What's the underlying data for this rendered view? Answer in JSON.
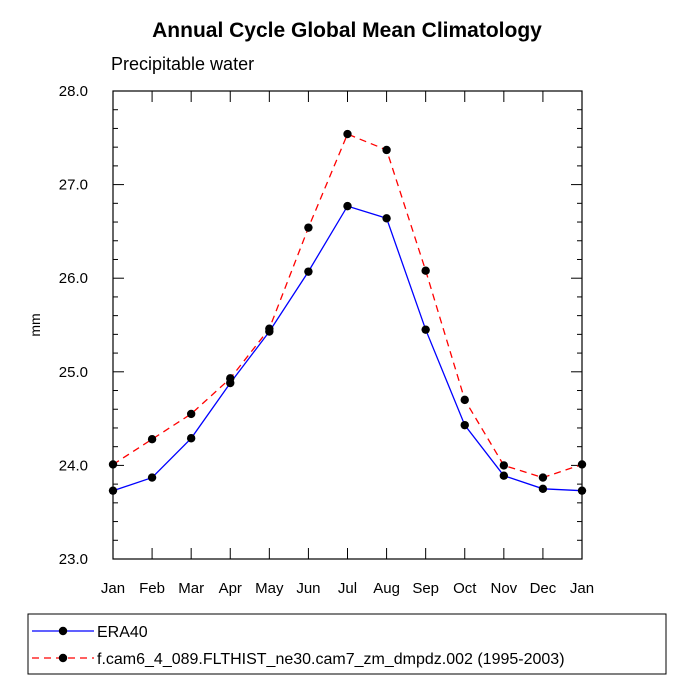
{
  "chart_data": {
    "type": "line",
    "title": "Annual Cycle Global Mean Climatology",
    "subtitle": "Precipitable water",
    "xlabel": "",
    "ylabel": "mm",
    "categories": [
      "Jan",
      "Feb",
      "Mar",
      "Apr",
      "May",
      "Jun",
      "Jul",
      "Aug",
      "Sep",
      "Oct",
      "Nov",
      "Dec",
      "Jan"
    ],
    "ylim": [
      23.0,
      28.0
    ],
    "yticks": [
      "23.0",
      "24.0",
      "25.0",
      "26.0",
      "27.0",
      "28.0"
    ],
    "grid": false,
    "legend_position": "bottom",
    "series": [
      {
        "name": "ERA40",
        "color": "#0000ff",
        "line_style": "solid",
        "marker": "filled-circle",
        "values": [
          23.73,
          23.87,
          24.29,
          24.88,
          25.43,
          26.07,
          26.77,
          26.64,
          25.45,
          24.43,
          23.89,
          23.75,
          23.73
        ]
      },
      {
        "name": "f.cam6_4_089.FLTHIST_ne30.cam7_zm_dmpdz.002 (1995-2003)",
        "color": "#ff0000",
        "line_style": "dashed",
        "marker": "filled-circle",
        "values": [
          24.01,
          24.28,
          24.55,
          24.93,
          25.46,
          26.54,
          27.54,
          27.37,
          26.08,
          24.7,
          24.0,
          23.87,
          24.01
        ]
      }
    ]
  }
}
